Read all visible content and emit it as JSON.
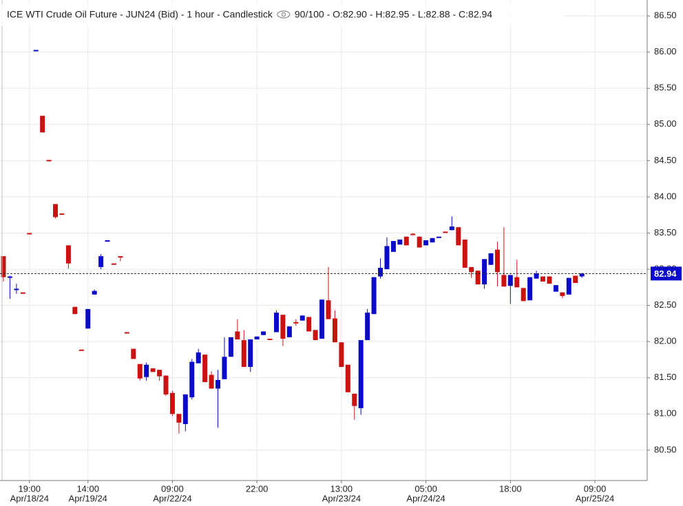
{
  "chart_data": {
    "type": "candlestick",
    "title": "ICE WTI Crude Oil Future - JUN24 (Bid) - 1 hour - Candlestick",
    "info": "90/100 - O:82.90 - H:82.95 - L:82.88 - C:82.94",
    "categories": [
      null,
      null,
      null,
      null,
      "19:00",
      null,
      null,
      null,
      null,
      null,
      null,
      null,
      null,
      "14:00",
      null,
      null,
      null,
      null,
      null,
      null,
      null,
      null,
      null,
      null,
      null,
      null,
      "09:00",
      null,
      null,
      null,
      null,
      null,
      null,
      null,
      null,
      null,
      null,
      null,
      null,
      "22:00",
      null,
      null,
      null,
      null,
      null,
      null,
      null,
      null,
      null,
      null,
      null,
      null,
      "13:00",
      null,
      null,
      null,
      null,
      null,
      null,
      null,
      null,
      null,
      null,
      null,
      null,
      "05:00",
      null,
      null,
      null,
      null,
      null,
      null,
      null,
      null,
      null,
      null,
      null,
      null,
      "18:00",
      null,
      null,
      null,
      null,
      null,
      null,
      null,
      null,
      null,
      null,
      null,
      null,
      "09:00"
    ],
    "dates": [
      null,
      null,
      null,
      null,
      "Apr/18/24",
      null,
      null,
      null,
      null,
      null,
      null,
      null,
      null,
      "Apr/19/24",
      null,
      null,
      null,
      null,
      null,
      null,
      null,
      null,
      null,
      null,
      null,
      null,
      "Apr/22/24",
      null,
      null,
      null,
      null,
      null,
      null,
      null,
      null,
      null,
      null,
      null,
      null,
      null,
      null,
      null,
      null,
      null,
      null,
      null,
      null,
      null,
      null,
      null,
      null,
      null,
      "Apr/23/24",
      null,
      null,
      null,
      null,
      null,
      null,
      null,
      null,
      null,
      null,
      null,
      null,
      "Apr/24/24",
      null,
      null,
      null,
      null,
      null,
      null,
      null,
      null,
      null,
      null,
      null,
      null,
      null,
      null,
      null,
      null,
      null,
      null,
      null,
      null,
      null,
      null,
      null,
      null,
      null,
      "Apr/25/24"
    ],
    "open": [
      83.18,
      82.88,
      82.72,
      82.68,
      83.5,
      86.02,
      85.12,
      84.51,
      83.9,
      83.77,
      83.33,
      82.48,
      81.89,
      82.18,
      82.65,
      83.03,
      83.39,
      83.08,
      83.18,
      82.13,
      81.9,
      81.69,
      81.51,
      81.63,
      81.61,
      81.53,
      81.29,
      81.0,
      80.86,
      81.23,
      81.7,
      81.82,
      81.54,
      81.35,
      81.48,
      81.79,
      82.14,
      82.02,
      81.65,
      82.03,
      82.09,
      82.04,
      82.13,
      82.37,
      82.06,
      82.27,
      82.29,
      82.34,
      82.16,
      82.04,
      82.57,
      82.32,
      81.99,
      81.68,
      81.28,
      81.08,
      82.02,
      82.38,
      82.9,
      83.0,
      83.24,
      83.34,
      83.45,
      83.49,
      83.45,
      83.33,
      83.37,
      83.44,
      83.52,
      83.54,
      83.58,
      83.41,
      83.03,
      82.98,
      82.79,
      83.06,
      83.27,
      82.92,
      82.77,
      82.89,
      82.74,
      82.57,
      82.87,
      82.9,
      82.9,
      82.69,
      82.68,
      82.65,
      82.91,
      82.9,
      null,
      null
    ],
    "high": [
      83.18,
      82.91,
      82.8,
      82.68,
      83.5,
      86.03,
      85.12,
      84.51,
      83.9,
      83.77,
      83.33,
      82.48,
      81.89,
      82.45,
      82.72,
      83.21,
      83.4,
      83.08,
      83.18,
      82.13,
      81.9,
      81.69,
      81.71,
      81.63,
      81.61,
      81.53,
      81.32,
      81.0,
      81.27,
      81.76,
      81.9,
      81.82,
      81.59,
      81.61,
      82.06,
      82.06,
      82.31,
      82.16,
      82.03,
      82.07,
      82.14,
      82.04,
      82.43,
      82.37,
      82.21,
      82.31,
      82.36,
      82.34,
      82.16,
      82.58,
      83.03,
      82.43,
      81.99,
      81.68,
      81.28,
      82.02,
      82.45,
      82.89,
      83.15,
      83.44,
      83.39,
      83.41,
      83.45,
      83.5,
      83.45,
      83.4,
      83.43,
      83.45,
      83.52,
      83.73,
      83.58,
      83.41,
      83.03,
      82.98,
      83.14,
      83.22,
      83.38,
      83.58,
      82.92,
      83.13,
      82.74,
      82.89,
      82.98,
      82.9,
      82.9,
      82.78,
      82.68,
      82.88,
      82.91,
      82.95,
      null,
      null
    ],
    "low": [
      82.83,
      82.59,
      82.66,
      82.68,
      83.5,
      86.02,
      84.89,
      84.51,
      83.7,
      83.77,
      83.01,
      82.38,
      81.89,
      82.18,
      82.65,
      83.0,
      83.39,
      83.08,
      83.11,
      82.13,
      81.76,
      81.46,
      81.46,
      81.58,
      81.46,
      81.25,
      80.97,
      80.73,
      80.76,
      81.2,
      81.7,
      81.44,
      81.35,
      80.81,
      81.48,
      81.79,
      82.03,
      81.65,
      81.58,
      82.03,
      82.09,
      82.04,
      82.13,
      81.94,
      82.06,
      82.22,
      82.29,
      82.14,
      82.02,
      82.04,
      82.31,
      81.99,
      81.65,
      81.3,
      80.92,
      80.99,
      82.02,
      82.38,
      82.87,
      83.0,
      83.24,
      83.34,
      83.33,
      83.48,
      83.3,
      83.33,
      83.37,
      83.44,
      83.52,
      83.54,
      83.33,
      83.02,
      82.88,
      82.79,
      82.73,
      83.06,
      82.76,
      82.76,
      82.52,
      82.75,
      82.56,
      82.57,
      82.87,
      82.83,
      82.8,
      82.69,
      82.6,
      82.65,
      82.81,
      82.88,
      null,
      null
    ],
    "close": [
      82.89,
      82.9,
      82.73,
      82.68,
      83.5,
      86.03,
      84.89,
      84.51,
      83.72,
      83.77,
      83.08,
      82.38,
      81.89,
      82.45,
      82.7,
      83.18,
      83.4,
      83.08,
      83.18,
      82.13,
      81.76,
      81.49,
      81.68,
      81.58,
      81.52,
      81.27,
      81.0,
      80.88,
      81.27,
      81.72,
      81.85,
      81.44,
      81.35,
      81.47,
      81.79,
      82.06,
      82.03,
      81.65,
      82.03,
      82.07,
      82.14,
      82.04,
      82.4,
      82.04,
      82.21,
      82.27,
      82.36,
      82.14,
      82.02,
      82.58,
      82.31,
      81.99,
      81.65,
      81.3,
      81.11,
      82.02,
      82.4,
      82.89,
      83.02,
      83.32,
      83.39,
      83.41,
      83.33,
      83.49,
      83.3,
      83.4,
      83.43,
      83.45,
      83.52,
      83.59,
      83.33,
      83.02,
      82.96,
      82.79,
      83.14,
      83.22,
      82.96,
      82.76,
      82.92,
      82.75,
      82.56,
      82.89,
      82.94,
      82.83,
      82.8,
      82.78,
      82.63,
      82.88,
      82.81,
      82.94,
      null,
      null
    ],
    "up_color": "#0a0ac8",
    "down_color": "#cc1111",
    "ylim": [
      80.08,
      86.72
    ],
    "yticks": [
      {
        "value": 80.5,
        "label": "80.50"
      },
      {
        "value": 81,
        "label": "81.00"
      },
      {
        "value": 81.5,
        "label": "81.50"
      },
      {
        "value": 82,
        "label": "82.00"
      },
      {
        "value": 82.5,
        "label": "82.50"
      },
      {
        "value": 83,
        "label": "83.00"
      },
      {
        "value": 83.5,
        "label": "83.50"
      },
      {
        "value": 84,
        "label": "84.00"
      },
      {
        "value": 84.5,
        "label": "84.50"
      },
      {
        "value": 85,
        "label": "85.00"
      },
      {
        "value": 85.5,
        "label": "85.50"
      },
      {
        "value": 86,
        "label": "86.00"
      },
      {
        "value": 86.5,
        "label": "86.50"
      }
    ],
    "last_price": 82.94,
    "grid": true
  }
}
